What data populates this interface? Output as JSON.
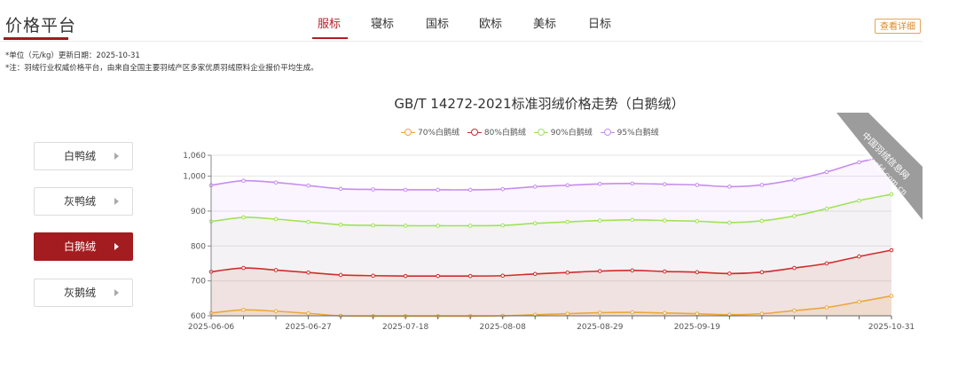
{
  "header": {
    "logo_title": "价格平台",
    "tabs": [
      {
        "label": "服标",
        "active": true
      },
      {
        "label": "寝标",
        "active": false
      },
      {
        "label": "国标",
        "active": false
      },
      {
        "label": "欧标",
        "active": false
      },
      {
        "label": "美标",
        "active": false
      },
      {
        "label": "日标",
        "active": false
      }
    ],
    "detail_button": "查看详细"
  },
  "notes": {
    "unit_line": "*单位（元/kg）更新日期：2025-10-31",
    "remark_line": "*注：羽绒行业权威价格平台，由来自全国主要羽绒产区多家优质羽绒原料企业报价平均生成。"
  },
  "sidebar": {
    "items": [
      {
        "label": "白鸭绒",
        "active": false
      },
      {
        "label": "灰鸭绒",
        "active": false
      },
      {
        "label": "白鹅绒",
        "active": true
      },
      {
        "label": "灰鹅绒",
        "active": false
      }
    ]
  },
  "watermark": {
    "line1": "中国羽绒信息网",
    "line2": "www.cfd.com.cn"
  },
  "colors": {
    "brand": "#a31c1f",
    "accent": "#d68b2e"
  },
  "chart_data": {
    "type": "line",
    "title": "GB/T 14272-2021标准羽绒价格走势（白鹅绒）",
    "legend_position": "top",
    "grid": true,
    "area": true,
    "ylim": [
      600,
      1060
    ],
    "y_ticks": [
      600,
      700,
      800,
      900,
      "1,000",
      "1,060"
    ],
    "x_ticks": [
      "2025-06-06",
      "2025-06-27",
      "2025-07-18",
      "2025-08-08",
      "2025-08-29",
      "2025-09-19",
      "2025-10-31"
    ],
    "x_count": 22,
    "series": [
      {
        "name": "70%白鹅绒",
        "color": "#eba73a",
        "fill": "rgba(235,167,58,0.10)",
        "values": [
          608,
          617,
          613,
          607,
          600,
          599,
          599,
          599,
          599,
          600,
          603,
          606,
          609,
          610,
          608,
          606,
          603,
          606,
          615,
          624,
          640,
          657
        ]
      },
      {
        "name": "80%白鹅绒",
        "color": "#cf2d2d",
        "fill": "rgba(205,90,50,0.10)",
        "values": [
          726,
          737,
          731,
          724,
          717,
          715,
          714,
          714,
          714,
          715,
          720,
          724,
          728,
          730,
          727,
          725,
          721,
          725,
          737,
          750,
          770,
          788
        ]
      },
      {
        "name": "90%白鹅绒",
        "color": "#9fe356",
        "fill": "rgba(150,200,90,0.06)",
        "values": [
          870,
          882,
          877,
          869,
          861,
          859,
          858,
          858,
          858,
          859,
          865,
          869,
          873,
          875,
          873,
          871,
          867,
          872,
          886,
          907,
          930,
          948
        ]
      },
      {
        "name": "95%白鹅绒",
        "color": "#c68cf0",
        "fill": "rgba(198,140,240,0.09)",
        "values": [
          974,
          987,
          982,
          973,
          964,
          962,
          961,
          961,
          961,
          963,
          970,
          974,
          978,
          979,
          977,
          975,
          970,
          975,
          990,
          1012,
          1040,
          1060
        ]
      }
    ]
  }
}
